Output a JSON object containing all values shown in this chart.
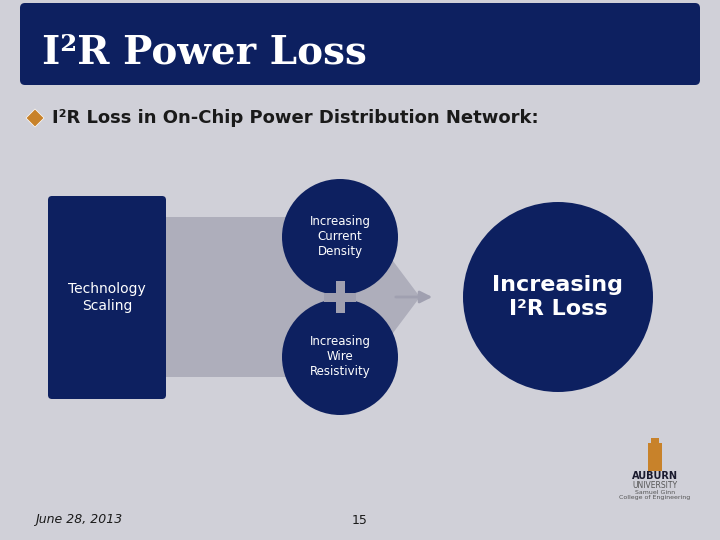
{
  "bg_color": "#d0d0d8",
  "header_color": "#0d2060",
  "header_text": "I²R Power Loss",
  "header_text_color": "#ffffff",
  "bullet_color": "#c8822a",
  "bullet_text": "I²R Loss in On-Chip Power Distribution Network:",
  "bullet_text_color": "#1a1a1a",
  "dark_blue": "#0d2060",
  "gray_arrow_color": "#a0a0b0",
  "circle_color": "#0d2060",
  "circle_text_color": "#ffffff",
  "rect_color": "#0d2060",
  "rect_text": "Technology\nScaling",
  "circle1_text": "Increasing\nCurrent\nDensity",
  "circle2_text": "Increasing\nWire\nResistivity",
  "result_text": "Increasing\nI²R Loss",
  "footer_date": "June 28, 2013",
  "footer_page": "15",
  "footer_color": "#1a1a1a"
}
